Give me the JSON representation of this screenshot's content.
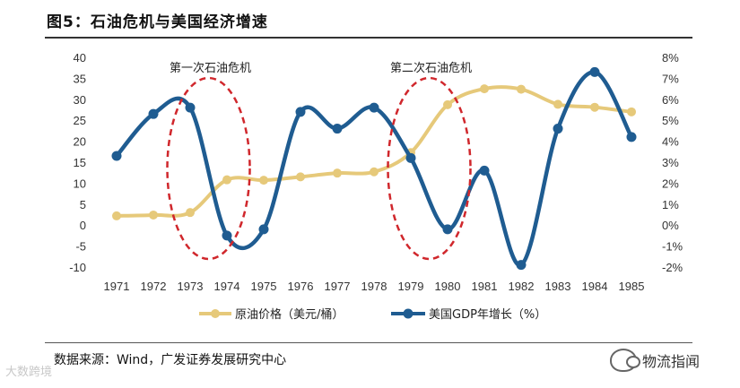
{
  "title": "图5：石油危机与美国经济增速",
  "source": "数据来源：Wind，广发证券发展研究中心",
  "watermark_right": "物流指闻",
  "watermark_left": "大数跨境",
  "colors": {
    "oil": "#E6C97A",
    "gdp": "#1F5C91",
    "ellipse": "#D0272C"
  },
  "chart_data": {
    "type": "line",
    "categories": [
      "1971",
      "1972",
      "1973",
      "1974",
      "1975",
      "1976",
      "1977",
      "1978",
      "1979",
      "1980",
      "1981",
      "1982",
      "1983",
      "1984",
      "1985"
    ],
    "series": [
      {
        "name": "原油价格（美元/桶）",
        "axis": "left",
        "values": [
          2.2,
          2.4,
          3.0,
          10.8,
          10.7,
          11.5,
          12.4,
          12.7,
          17.3,
          28.7,
          32.5,
          32.4,
          28.8,
          28.1,
          27.0
        ]
      },
      {
        "name": "美国GDP年增长（%）",
        "axis": "right",
        "values": [
          3.3,
          5.3,
          5.6,
          -0.5,
          -0.2,
          5.4,
          4.6,
          5.6,
          3.2,
          -0.2,
          2.6,
          -1.9,
          4.6,
          7.3,
          4.2
        ]
      }
    ],
    "y_left": {
      "min": -10,
      "max": 40,
      "ticks": [
        "-10",
        "-5",
        "0",
        "5",
        "10",
        "15",
        "20",
        "25",
        "30",
        "35",
        "40"
      ]
    },
    "y_right": {
      "min": -2,
      "max": 8,
      "ticks": [
        "-2%",
        "-1%",
        "0%",
        "1%",
        "2%",
        "3%",
        "4%",
        "5%",
        "6%",
        "7%",
        "8%"
      ]
    },
    "annotations": [
      {
        "text": "第一次石油危机",
        "period": [
          "1973",
          "1974"
        ]
      },
      {
        "text": "第二次石油危机",
        "period": [
          "1979",
          "1980"
        ]
      }
    ],
    "legend": [
      "原油价格（美元/桶）",
      "美国GDP年增长（%）"
    ],
    "legend_position": "bottom"
  }
}
